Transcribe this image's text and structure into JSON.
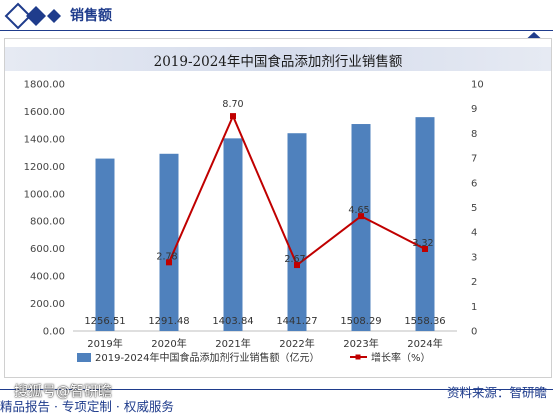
{
  "header": {
    "section_title": "销售额"
  },
  "chart_data": {
    "type": "bar",
    "title": "2019-2024年中国食品添加剂行业销售额",
    "categories": [
      "2019年",
      "2020年",
      "2021年",
      "2022年",
      "2023年",
      "2024年"
    ],
    "series": [
      {
        "name": "2019-2024年中国食品添加剂行业销售额（亿元）",
        "type": "bar",
        "axis": "left",
        "values": [
          1256.51,
          1291.48,
          1403.84,
          1441.27,
          1508.29,
          1558.36
        ],
        "labels": [
          "1256.51",
          "1291.48",
          "1403.84",
          "1441.27",
          "1508.29",
          "1558.36"
        ],
        "color": "#4f81bd"
      },
      {
        "name": "增长率（%）",
        "type": "line",
        "axis": "right",
        "values": [
          null,
          2.78,
          8.7,
          2.67,
          4.65,
          3.32
        ],
        "labels": [
          "",
          "2.78",
          "8.70",
          "2.67",
          "4.65",
          "3.32"
        ],
        "color": "#c00000"
      }
    ],
    "y_left": {
      "range": [
        0,
        1800
      ],
      "ticks": [
        "0.00",
        "200.00",
        "400.00",
        "600.00",
        "800.00",
        "1000.00",
        "1200.00",
        "1400.00",
        "1600.00",
        "1800.00"
      ]
    },
    "y_right": {
      "range": [
        0,
        10
      ],
      "ticks": [
        "0",
        "1",
        "2",
        "3",
        "4",
        "5",
        "6",
        "7",
        "8",
        "9",
        "10"
      ]
    },
    "legend_position": "bottom",
    "grid": false
  },
  "footer": {
    "source": "资料来源：智研瞻",
    "slogan": "精品报告 · 专项定制 · 权威服务",
    "watermark": "搜狐号@智研瞻"
  },
  "colors": {
    "brand": "#1f3c8c",
    "bar": "#4f81bd",
    "line": "#c00000"
  }
}
